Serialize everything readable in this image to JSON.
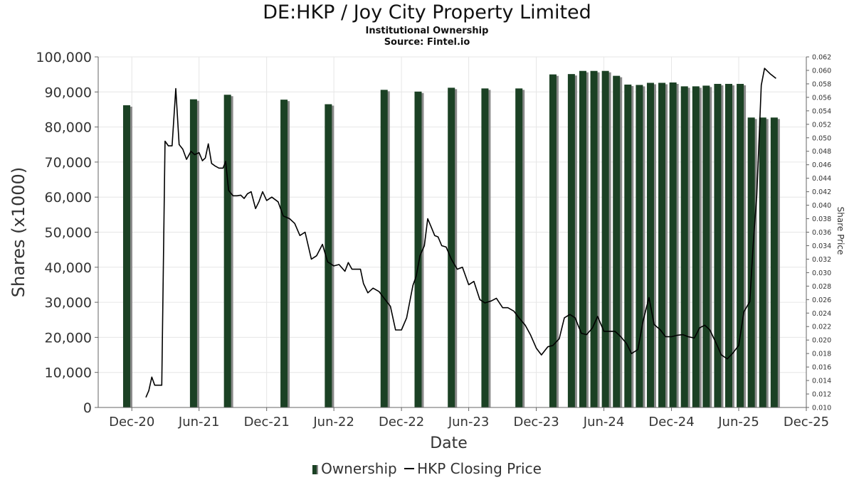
{
  "header": {
    "title": "DE:HKP / Joy City Property Limited",
    "subtitle": "Institutional Ownership",
    "source": "Source: Fintel.io"
  },
  "legend": {
    "ownership_label": "Ownership",
    "price_label": "HKP Closing Price"
  },
  "colors": {
    "bar": "#1b4124",
    "bar_shadow": "#8a8a8a",
    "line": "#000000",
    "grid": "#e6e6e6"
  },
  "chart_data": {
    "type": "bar",
    "xlabel": "Date",
    "ylabel": "Shares (x1000)",
    "y2label": "Share Price",
    "xlim": [
      "2020-09-01",
      "2025-12-01"
    ],
    "ylim": [
      0,
      100000
    ],
    "y2lim": [
      0.01,
      0.062
    ],
    "grid": true,
    "legend_position": "bottom",
    "x_ticks": [
      {
        "date": "2020-12-01",
        "label": "Dec-20"
      },
      {
        "date": "2021-06-01",
        "label": "Jun-21"
      },
      {
        "date": "2021-12-01",
        "label": "Dec-21"
      },
      {
        "date": "2022-06-01",
        "label": "Jun-22"
      },
      {
        "date": "2022-12-01",
        "label": "Dec-22"
      },
      {
        "date": "2023-06-01",
        "label": "Jun-23"
      },
      {
        "date": "2023-12-01",
        "label": "Dec-23"
      },
      {
        "date": "2024-06-01",
        "label": "Jun-24"
      },
      {
        "date": "2024-12-01",
        "label": "Dec-24"
      },
      {
        "date": "2025-06-01",
        "label": "Jun-25"
      },
      {
        "date": "2025-12-01",
        "label": "Dec-25"
      }
    ],
    "y_ticks": [
      {
        "value": 0,
        "label": "0"
      },
      {
        "value": 10000,
        "label": "10,000"
      },
      {
        "value": 20000,
        "label": "20,000"
      },
      {
        "value": 30000,
        "label": "30,000"
      },
      {
        "value": 40000,
        "label": "40,000"
      },
      {
        "value": 50000,
        "label": "50,000"
      },
      {
        "value": 60000,
        "label": "60,000"
      },
      {
        "value": 70000,
        "label": "70,000"
      },
      {
        "value": 80000,
        "label": "80,000"
      },
      {
        "value": 90000,
        "label": "90,000"
      },
      {
        "value": 100000,
        "label": "100,000"
      }
    ],
    "y2_ticks": [
      {
        "value": 0.01,
        "label": "0.010"
      },
      {
        "value": 0.012,
        "label": "0.012"
      },
      {
        "value": 0.014,
        "label": "0.014"
      },
      {
        "value": 0.016,
        "label": "0.016"
      },
      {
        "value": 0.018,
        "label": "0.018"
      },
      {
        "value": 0.02,
        "label": "0.020"
      },
      {
        "value": 0.022,
        "label": "0.022"
      },
      {
        "value": 0.024,
        "label": "0.024"
      },
      {
        "value": 0.026,
        "label": "0.026"
      },
      {
        "value": 0.028,
        "label": "0.028"
      },
      {
        "value": 0.03,
        "label": "0.030"
      },
      {
        "value": 0.032,
        "label": "0.032"
      },
      {
        "value": 0.034,
        "label": "0.034"
      },
      {
        "value": 0.036,
        "label": "0.036"
      },
      {
        "value": 0.038,
        "label": "0.038"
      },
      {
        "value": 0.04,
        "label": "0.040"
      },
      {
        "value": 0.042,
        "label": "0.042"
      },
      {
        "value": 0.044,
        "label": "0.044"
      },
      {
        "value": 0.046,
        "label": "0.046"
      },
      {
        "value": 0.048,
        "label": "0.048"
      },
      {
        "value": 0.05,
        "label": "0.050"
      },
      {
        "value": 0.052,
        "label": "0.052"
      },
      {
        "value": 0.054,
        "label": "0.054"
      },
      {
        "value": 0.056,
        "label": "0.056"
      },
      {
        "value": 0.058,
        "label": "0.058"
      },
      {
        "value": 0.06,
        "label": "0.060"
      },
      {
        "value": 0.062,
        "label": "0.062"
      }
    ],
    "series": [
      {
        "name": "Ownership",
        "type": "bar",
        "points": [
          {
            "date": "2020-11-17",
            "value": 86200
          },
          {
            "date": "2021-05-17",
            "value": 87900
          },
          {
            "date": "2021-08-17",
            "value": 89200
          },
          {
            "date": "2022-01-17",
            "value": 87800
          },
          {
            "date": "2022-05-17",
            "value": 86500
          },
          {
            "date": "2022-10-15",
            "value": 90600
          },
          {
            "date": "2023-01-15",
            "value": 90100
          },
          {
            "date": "2023-04-15",
            "value": 91200
          },
          {
            "date": "2023-07-15",
            "value": 91000
          },
          {
            "date": "2023-10-15",
            "value": 91000
          },
          {
            "date": "2024-01-15",
            "value": 95000
          },
          {
            "date": "2024-03-05",
            "value": 95100
          },
          {
            "date": "2024-04-05",
            "value": 96000
          },
          {
            "date": "2024-05-05",
            "value": 96000
          },
          {
            "date": "2024-06-05",
            "value": 96000
          },
          {
            "date": "2024-07-05",
            "value": 94600
          },
          {
            "date": "2024-08-05",
            "value": 92100
          },
          {
            "date": "2024-09-05",
            "value": 92000
          },
          {
            "date": "2024-10-05",
            "value": 92600
          },
          {
            "date": "2024-11-05",
            "value": 92600
          },
          {
            "date": "2024-12-05",
            "value": 92700
          },
          {
            "date": "2025-01-05",
            "value": 91600
          },
          {
            "date": "2025-02-05",
            "value": 91600
          },
          {
            "date": "2025-03-05",
            "value": 91800
          },
          {
            "date": "2025-04-05",
            "value": 92300
          },
          {
            "date": "2025-05-05",
            "value": 92300
          },
          {
            "date": "2025-06-05",
            "value": 92300
          },
          {
            "date": "2025-07-05",
            "value": 82700
          },
          {
            "date": "2025-08-05",
            "value": 82700
          },
          {
            "date": "2025-09-05",
            "value": 82700
          }
        ]
      },
      {
        "name": "HKP Closing Price",
        "type": "line",
        "axis": "right",
        "points": [
          {
            "date": "2021-01-08",
            "value": 0.0115
          },
          {
            "date": "2021-01-16",
            "value": 0.0125
          },
          {
            "date": "2021-01-24",
            "value": 0.0145
          },
          {
            "date": "2021-02-01",
            "value": 0.0133
          },
          {
            "date": "2021-02-12",
            "value": 0.0133
          },
          {
            "date": "2021-02-20",
            "value": 0.0133
          },
          {
            "date": "2021-03-01",
            "value": 0.0495
          },
          {
            "date": "2021-03-10",
            "value": 0.0488
          },
          {
            "date": "2021-03-20",
            "value": 0.0488
          },
          {
            "date": "2021-03-30",
            "value": 0.0573
          },
          {
            "date": "2021-04-08",
            "value": 0.049
          },
          {
            "date": "2021-04-18",
            "value": 0.0483
          },
          {
            "date": "2021-04-28",
            "value": 0.0468
          },
          {
            "date": "2021-05-10",
            "value": 0.048
          },
          {
            "date": "2021-05-20",
            "value": 0.0475
          },
          {
            "date": "2021-06-01",
            "value": 0.0478
          },
          {
            "date": "2021-06-10",
            "value": 0.0466
          },
          {
            "date": "2021-06-18",
            "value": 0.047
          },
          {
            "date": "2021-06-26",
            "value": 0.0491
          },
          {
            "date": "2021-07-05",
            "value": 0.0462
          },
          {
            "date": "2021-07-15",
            "value": 0.0458
          },
          {
            "date": "2021-07-25",
            "value": 0.0455
          },
          {
            "date": "2021-08-05",
            "value": 0.0455
          },
          {
            "date": "2021-08-12",
            "value": 0.0465
          },
          {
            "date": "2021-08-20",
            "value": 0.0422
          },
          {
            "date": "2021-09-01",
            "value": 0.0414
          },
          {
            "date": "2021-09-12",
            "value": 0.0414
          },
          {
            "date": "2021-09-22",
            "value": 0.0415
          },
          {
            "date": "2021-10-01",
            "value": 0.041
          },
          {
            "date": "2021-10-10",
            "value": 0.0417
          },
          {
            "date": "2021-10-20",
            "value": 0.042
          },
          {
            "date": "2021-11-01",
            "value": 0.0395
          },
          {
            "date": "2021-11-10",
            "value": 0.0405
          },
          {
            "date": "2021-11-20",
            "value": 0.042
          },
          {
            "date": "2021-12-01",
            "value": 0.0407
          },
          {
            "date": "2021-12-15",
            "value": 0.0412
          },
          {
            "date": "2022-01-01",
            "value": 0.0405
          },
          {
            "date": "2022-01-15",
            "value": 0.0384
          },
          {
            "date": "2022-02-01",
            "value": 0.038
          },
          {
            "date": "2022-02-15",
            "value": 0.0373
          },
          {
            "date": "2022-03-01",
            "value": 0.0355
          },
          {
            "date": "2022-03-15",
            "value": 0.036
          },
          {
            "date": "2022-04-01",
            "value": 0.032
          },
          {
            "date": "2022-04-15",
            "value": 0.0325
          },
          {
            "date": "2022-05-01",
            "value": 0.0342
          },
          {
            "date": "2022-05-15",
            "value": 0.0316
          },
          {
            "date": "2022-06-01",
            "value": 0.031
          },
          {
            "date": "2022-06-15",
            "value": 0.0312
          },
          {
            "date": "2022-07-01",
            "value": 0.0302
          },
          {
            "date": "2022-07-10",
            "value": 0.0315
          },
          {
            "date": "2022-07-20",
            "value": 0.0305
          },
          {
            "date": "2022-08-01",
            "value": 0.0305
          },
          {
            "date": "2022-08-12",
            "value": 0.0305
          },
          {
            "date": "2022-08-20",
            "value": 0.0284
          },
          {
            "date": "2022-09-01",
            "value": 0.027
          },
          {
            "date": "2022-09-15",
            "value": 0.0277
          },
          {
            "date": "2022-10-01",
            "value": 0.0272
          },
          {
            "date": "2022-10-15",
            "value": 0.0262
          },
          {
            "date": "2022-11-01",
            "value": 0.025
          },
          {
            "date": "2022-11-15",
            "value": 0.0215
          },
          {
            "date": "2022-12-01",
            "value": 0.0215
          },
          {
            "date": "2022-12-15",
            "value": 0.0233
          },
          {
            "date": "2023-01-01",
            "value": 0.0281
          },
          {
            "date": "2023-01-10",
            "value": 0.0295
          },
          {
            "date": "2023-01-20",
            "value": 0.0325
          },
          {
            "date": "2023-02-01",
            "value": 0.034
          },
          {
            "date": "2023-02-10",
            "value": 0.038
          },
          {
            "date": "2023-02-20",
            "value": 0.0367
          },
          {
            "date": "2023-03-01",
            "value": 0.0355
          },
          {
            "date": "2023-03-10",
            "value": 0.0353
          },
          {
            "date": "2023-03-20",
            "value": 0.034
          },
          {
            "date": "2023-04-01",
            "value": 0.0338
          },
          {
            "date": "2023-04-15",
            "value": 0.032
          },
          {
            "date": "2023-05-01",
            "value": 0.0305
          },
          {
            "date": "2023-05-15",
            "value": 0.0308
          },
          {
            "date": "2023-06-01",
            "value": 0.0282
          },
          {
            "date": "2023-06-15",
            "value": 0.0287
          },
          {
            "date": "2023-07-01",
            "value": 0.026
          },
          {
            "date": "2023-07-15",
            "value": 0.0255
          },
          {
            "date": "2023-08-01",
            "value": 0.0258
          },
          {
            "date": "2023-08-15",
            "value": 0.0262
          },
          {
            "date": "2023-09-01",
            "value": 0.0248
          },
          {
            "date": "2023-09-15",
            "value": 0.0248
          },
          {
            "date": "2023-10-01",
            "value": 0.0243
          },
          {
            "date": "2023-10-15",
            "value": 0.0233
          },
          {
            "date": "2023-11-01",
            "value": 0.0222
          },
          {
            "date": "2023-11-15",
            "value": 0.0208
          },
          {
            "date": "2023-12-01",
            "value": 0.0188
          },
          {
            "date": "2023-12-15",
            "value": 0.0178
          },
          {
            "date": "2024-01-01",
            "value": 0.019
          },
          {
            "date": "2024-01-15",
            "value": 0.0192
          },
          {
            "date": "2024-02-01",
            "value": 0.0202
          },
          {
            "date": "2024-02-15",
            "value": 0.0233
          },
          {
            "date": "2024-03-01",
            "value": 0.0238
          },
          {
            "date": "2024-03-15",
            "value": 0.0233
          },
          {
            "date": "2024-04-01",
            "value": 0.021
          },
          {
            "date": "2024-04-15",
            "value": 0.0208
          },
          {
            "date": "2024-05-01",
            "value": 0.0218
          },
          {
            "date": "2024-05-15",
            "value": 0.0235
          },
          {
            "date": "2024-06-01",
            "value": 0.0213
          },
          {
            "date": "2024-06-15",
            "value": 0.0213
          },
          {
            "date": "2024-07-01",
            "value": 0.0213
          },
          {
            "date": "2024-07-15",
            "value": 0.0206
          },
          {
            "date": "2024-08-01",
            "value": 0.0195
          },
          {
            "date": "2024-08-15",
            "value": 0.018
          },
          {
            "date": "2024-09-01",
            "value": 0.0186
          },
          {
            "date": "2024-09-15",
            "value": 0.0228
          },
          {
            "date": "2024-10-01",
            "value": 0.0263
          },
          {
            "date": "2024-10-15",
            "value": 0.0223
          },
          {
            "date": "2024-11-01",
            "value": 0.0215
          },
          {
            "date": "2024-11-15",
            "value": 0.0205
          },
          {
            "date": "2024-12-01",
            "value": 0.0205
          },
          {
            "date": "2024-12-15",
            "value": 0.0207
          },
          {
            "date": "2025-01-01",
            "value": 0.0208
          },
          {
            "date": "2025-01-15",
            "value": 0.0205
          },
          {
            "date": "2025-02-01",
            "value": 0.0203
          },
          {
            "date": "2025-02-15",
            "value": 0.0218
          },
          {
            "date": "2025-03-01",
            "value": 0.0222
          },
          {
            "date": "2025-03-15",
            "value": 0.0215
          },
          {
            "date": "2025-04-01",
            "value": 0.0195
          },
          {
            "date": "2025-04-15",
            "value": 0.0178
          },
          {
            "date": "2025-05-01",
            "value": 0.0172
          },
          {
            "date": "2025-05-15",
            "value": 0.018
          },
          {
            "date": "2025-06-01",
            "value": 0.0192
          },
          {
            "date": "2025-06-15",
            "value": 0.0242
          },
          {
            "date": "2025-07-01",
            "value": 0.0257
          },
          {
            "date": "2025-07-10",
            "value": 0.0341
          },
          {
            "date": "2025-07-20",
            "value": 0.0415
          },
          {
            "date": "2025-08-01",
            "value": 0.0578
          },
          {
            "date": "2025-08-10",
            "value": 0.0603
          },
          {
            "date": "2025-08-25",
            "value": 0.0595
          },
          {
            "date": "2025-09-10",
            "value": 0.0588
          }
        ]
      }
    ]
  }
}
